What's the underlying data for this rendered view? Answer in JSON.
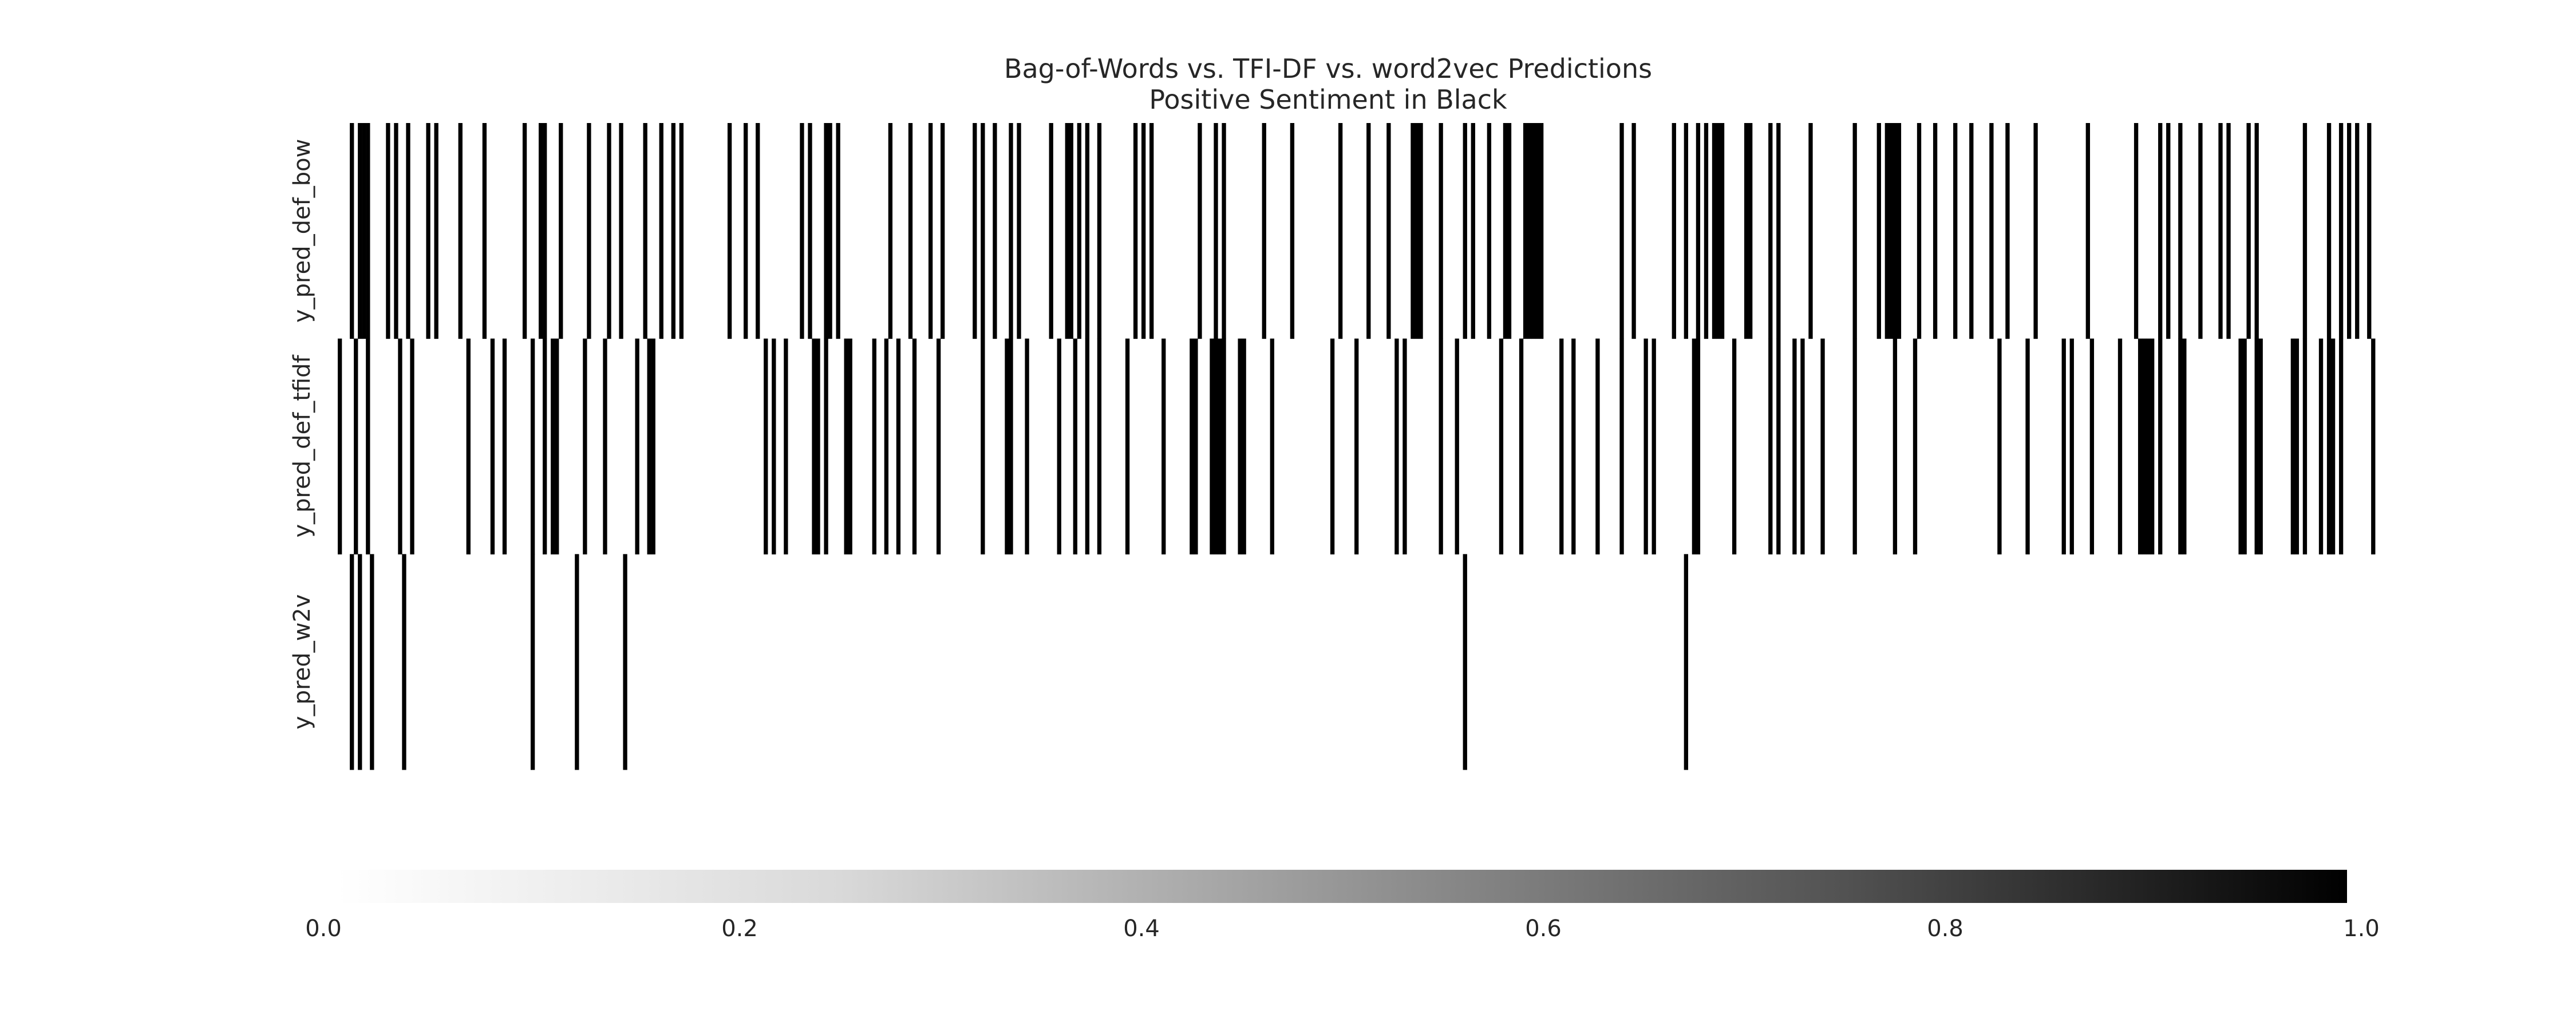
{
  "chart_data": {
    "type": "heatmap",
    "title": "Bag-of-Words vs. TFI-DF vs. word2vec Predictions",
    "subtitle": "Positive Sentiment in Black",
    "rows": [
      "y_pred_def_bow",
      "y_pred_def_tfidf",
      "y_pred_w2v"
    ],
    "n_columns": 500,
    "values": [
      [
        0,
        0,
        0,
        1,
        0,
        1,
        1,
        1,
        0,
        0,
        0,
        0,
        1,
        0,
        1,
        0,
        0,
        1,
        0,
        0,
        0,
        0,
        1,
        0,
        1,
        0,
        0,
        0,
        0,
        0,
        1,
        0,
        0,
        0,
        0,
        0,
        1,
        0,
        0,
        0,
        0,
        0,
        0,
        0,
        0,
        0,
        1,
        0,
        0,
        0,
        1,
        1,
        0,
        0,
        0,
        1,
        0,
        0,
        0,
        0,
        0,
        0,
        1,
        0,
        0,
        0,
        0,
        1,
        0,
        0,
        1,
        0,
        0,
        0,
        0,
        0,
        1,
        0,
        0,
        0,
        1,
        0,
        0,
        1,
        0,
        1,
        0,
        0,
        0,
        0,
        0,
        0,
        0,
        0,
        0,
        0,
        0,
        1,
        0,
        0,
        0,
        1,
        0,
        0,
        1,
        0,
        0,
        0,
        0,
        0,
        0,
        0,
        0,
        0,
        0,
        1,
        0,
        1,
        0,
        0,
        0,
        1,
        1,
        0,
        1,
        0,
        0,
        0,
        0,
        0,
        0,
        0,
        0,
        0,
        0,
        0,
        0,
        1,
        0,
        0,
        0,
        0,
        1,
        0,
        0,
        0,
        0,
        1,
        0,
        0,
        1,
        0,
        0,
        0,
        0,
        0,
        0,
        0,
        1,
        0,
        1,
        0,
        0,
        1,
        0,
        0,
        0,
        1,
        0,
        1,
        0,
        0,
        0,
        0,
        0,
        0,
        0,
        1,
        0,
        0,
        0,
        1,
        1,
        0,
        1,
        0,
        1,
        0,
        0,
        1,
        0,
        0,
        0,
        0,
        0,
        0,
        0,
        0,
        1,
        0,
        1,
        0,
        1,
        0,
        0,
        0,
        0,
        0,
        0,
        0,
        0,
        0,
        0,
        0,
        1,
        0,
        0,
        0,
        1,
        0,
        1,
        0,
        0,
        0,
        0,
        0,
        0,
        0,
        0,
        0,
        1,
        0,
        0,
        0,
        0,
        0,
        0,
        1,
        0,
        0,
        0,
        0,
        0,
        0,
        0,
        0,
        0,
        0,
        0,
        1,
        0,
        0,
        0,
        0,
        0,
        0,
        1,
        0,
        0,
        0,
        0,
        1,
        0,
        0,
        0,
        0,
        0,
        1,
        1,
        1,
        0,
        0,
        0,
        0,
        1,
        0,
        0,
        0,
        0,
        0,
        1,
        0,
        1,
        0,
        0,
        0,
        1,
        0,
        0,
        0,
        1,
        1,
        0,
        0,
        0,
        1,
        1,
        1,
        1,
        1,
        0,
        0,
        0,
        0,
        0,
        0,
        0,
        0,
        0,
        0,
        0,
        0,
        0,
        0,
        0,
        0,
        0,
        0,
        0,
        1,
        0,
        0,
        1,
        0,
        0,
        0,
        0,
        0,
        0,
        0,
        0,
        0,
        1,
        0,
        0,
        1,
        0,
        0,
        1,
        0,
        1,
        0,
        1,
        1,
        1,
        0,
        0,
        0,
        0,
        0,
        1,
        1,
        0,
        0,
        0,
        0,
        1,
        0,
        1,
        0,
        0,
        0,
        0,
        0,
        0,
        0,
        1,
        0,
        0,
        0,
        0,
        0,
        0,
        0,
        0,
        0,
        0,
        1,
        0,
        0,
        0,
        0,
        0,
        1,
        0,
        1,
        1,
        1,
        1,
        0,
        0,
        0,
        0,
        1,
        0,
        0,
        0,
        1,
        0,
        0,
        0,
        0,
        1,
        0,
        0,
        0,
        1,
        0,
        0,
        0,
        0,
        1,
        0,
        0,
        0,
        1,
        0,
        0,
        0,
        0,
        0,
        0,
        1,
        0,
        0,
        0,
        0,
        0,
        0,
        0,
        0,
        0,
        0,
        0,
        0,
        1,
        0,
        0,
        0,
        0,
        0,
        0,
        0,
        0,
        0,
        0,
        0,
        1,
        0,
        0,
        0,
        0,
        0,
        1,
        0,
        1,
        0,
        0,
        1,
        0,
        0,
        0,
        0,
        1,
        0,
        0,
        0,
        0,
        1,
        0,
        1,
        0,
        0,
        0,
        0,
        1,
        0,
        1,
        0,
        0,
        0,
        0,
        0,
        0,
        0,
        0,
        0,
        0,
        0,
        1,
        0,
        0,
        0,
        0,
        0,
        1,
        0,
        0,
        1,
        0,
        1,
        0,
        1,
        0,
        0,
        1,
        0,
        0,
        0
      ],
      [
        1,
        0,
        0,
        0,
        1,
        0,
        0,
        1,
        0,
        0,
        0,
        0,
        0,
        0,
        0,
        1,
        0,
        0,
        1,
        0,
        0,
        0,
        0,
        0,
        0,
        0,
        0,
        0,
        0,
        0,
        0,
        0,
        1,
        0,
        0,
        0,
        0,
        0,
        1,
        0,
        0,
        1,
        0,
        0,
        0,
        0,
        0,
        0,
        1,
        0,
        0,
        1,
        0,
        1,
        1,
        0,
        0,
        0,
        0,
        0,
        0,
        1,
        0,
        0,
        0,
        0,
        1,
        0,
        0,
        0,
        0,
        0,
        0,
        0,
        1,
        0,
        0,
        1,
        1,
        0,
        0,
        0,
        0,
        0,
        0,
        0,
        0,
        0,
        0,
        0,
        0,
        0,
        0,
        0,
        0,
        0,
        0,
        0,
        0,
        0,
        0,
        0,
        0,
        0,
        0,
        0,
        1,
        0,
        1,
        0,
        0,
        1,
        0,
        0,
        0,
        0,
        0,
        0,
        1,
        1,
        0,
        1,
        0,
        0,
        0,
        0,
        1,
        1,
        0,
        0,
        0,
        0,
        0,
        1,
        0,
        0,
        1,
        0,
        0,
        1,
        0,
        0,
        0,
        1,
        0,
        0,
        0,
        0,
        0,
        1,
        0,
        0,
        0,
        0,
        0,
        0,
        0,
        0,
        0,
        0,
        1,
        0,
        0,
        0,
        0,
        0,
        1,
        1,
        0,
        0,
        0,
        1,
        0,
        0,
        0,
        0,
        0,
        0,
        0,
        1,
        0,
        0,
        0,
        1,
        0,
        0,
        1,
        0,
        0,
        1,
        0,
        0,
        0,
        0,
        0,
        0,
        1,
        0,
        0,
        0,
        0,
        0,
        0,
        0,
        0,
        1,
        0,
        0,
        0,
        0,
        0,
        0,
        1,
        1,
        0,
        0,
        0,
        1,
        1,
        1,
        1,
        0,
        0,
        0,
        1,
        1,
        0,
        0,
        0,
        0,
        0,
        0,
        1,
        0,
        0,
        0,
        0,
        0,
        0,
        0,
        0,
        0,
        0,
        0,
        0,
        0,
        0,
        1,
        0,
        0,
        0,
        0,
        0,
        1,
        0,
        0,
        0,
        0,
        0,
        0,
        0,
        0,
        0,
        1,
        0,
        1,
        0,
        0,
        0,
        0,
        0,
        0,
        0,
        0,
        1,
        0,
        0,
        0,
        1,
        0,
        0,
        0,
        0,
        0,
        0,
        0,
        0,
        0,
        0,
        1,
        0,
        0,
        0,
        0,
        1,
        0,
        0,
        0,
        0,
        0,
        0,
        0,
        0,
        0,
        1,
        0,
        0,
        1,
        0,
        0,
        0,
        0,
        0,
        1,
        0,
        0,
        0,
        0,
        0,
        1,
        0,
        0,
        0,
        0,
        0,
        1,
        0,
        1,
        0,
        0,
        0,
        0,
        0,
        0,
        0,
        0,
        0,
        1,
        1,
        0,
        0,
        0,
        0,
        0,
        0,
        0,
        0,
        1,
        0,
        0,
        0,
        0,
        0,
        0,
        0,
        0,
        1,
        0,
        1,
        0,
        0,
        0,
        1,
        0,
        1,
        0,
        0,
        0,
        0,
        1,
        0,
        0,
        0,
        0,
        0,
        0,
        0,
        1,
        0,
        0,
        0,
        0,
        0,
        0,
        0,
        0,
        0,
        1,
        0,
        0,
        0,
        0,
        1,
        0,
        0,
        0,
        0,
        0,
        0,
        0,
        0,
        0,
        0,
        0,
        0,
        0,
        0,
        0,
        0,
        0,
        0,
        0,
        0,
        1,
        0,
        0,
        0,
        0,
        0,
        0,
        1,
        0,
        0,
        0,
        0,
        0,
        0,
        0,
        0,
        1,
        0,
        1,
        0,
        0,
        0,
        0,
        1,
        0,
        0,
        0,
        0,
        0,
        0,
        1,
        0,
        0,
        0,
        0,
        1,
        1,
        1,
        1,
        0,
        1,
        0,
        0,
        0,
        0,
        1,
        1,
        0,
        0,
        0,
        0,
        0,
        0,
        0,
        0,
        0,
        0,
        0,
        0,
        0,
        1,
        1,
        0,
        0,
        1,
        1,
        0,
        0,
        0,
        0,
        0,
        0,
        0,
        1,
        1,
        0,
        1,
        0,
        0,
        0,
        1,
        0,
        1,
        1,
        0,
        1,
        0,
        0,
        0,
        0,
        0,
        0,
        0,
        1
      ],
      [
        0,
        0,
        0,
        1,
        0,
        1,
        0,
        0,
        1,
        0,
        0,
        0,
        0,
        0,
        0,
        0,
        1,
        0,
        0,
        0,
        0,
        0,
        0,
        0,
        0,
        0,
        0,
        0,
        0,
        0,
        0,
        0,
        0,
        0,
        0,
        0,
        0,
        0,
        0,
        0,
        0,
        0,
        0,
        0,
        0,
        0,
        0,
        0,
        1,
        0,
        0,
        0,
        0,
        0,
        0,
        0,
        0,
        0,
        0,
        1,
        0,
        0,
        0,
        0,
        0,
        0,
        0,
        0,
        0,
        0,
        0,
        1,
        0,
        0,
        0,
        0,
        0,
        0,
        0,
        0,
        0,
        0,
        0,
        0,
        0,
        0,
        0,
        0,
        0,
        0,
        0,
        0,
        0,
        0,
        0,
        0,
        0,
        0,
        0,
        0,
        0,
        0,
        0,
        0,
        0,
        0,
        0,
        0,
        0,
        0,
        0,
        0,
        0,
        0,
        0,
        0,
        0,
        0,
        0,
        0,
        0,
        0,
        0,
        0,
        0,
        0,
        0,
        0,
        0,
        0,
        0,
        0,
        0,
        0,
        0,
        0,
        0,
        0,
        0,
        0,
        0,
        0,
        0,
        0,
        0,
        0,
        0,
        0,
        0,
        0,
        0,
        0,
        0,
        0,
        0,
        0,
        0,
        0,
        0,
        0,
        0,
        0,
        0,
        0,
        0,
        0,
        0,
        0,
        0,
        0,
        0,
        0,
        0,
        0,
        0,
        0,
        0,
        0,
        0,
        0,
        0,
        0,
        0,
        0,
        0,
        0,
        0,
        0,
        0,
        0,
        0,
        0,
        0,
        0,
        0,
        0,
        0,
        0,
        0,
        0,
        0,
        0,
        0,
        0,
        0,
        0,
        0,
        0,
        0,
        0,
        0,
        0,
        0,
        0,
        0,
        0,
        0,
        0,
        0,
        0,
        0,
        0,
        0,
        0,
        0,
        0,
        0,
        0,
        0,
        0,
        0,
        0,
        0,
        0,
        0,
        0,
        0,
        0,
        0,
        0,
        0,
        0,
        0,
        0,
        0,
        0,
        0,
        0,
        0,
        0,
        0,
        0,
        0,
        0,
        0,
        0,
        0,
        0,
        0,
        0,
        0,
        0,
        0,
        0,
        0,
        0,
        0,
        0,
        0,
        0,
        0,
        0,
        0,
        0,
        0,
        0,
        0,
        0,
        0,
        0,
        1,
        0,
        0,
        0,
        0,
        0,
        0,
        0,
        0,
        0,
        0,
        0,
        0,
        0,
        0,
        0,
        0,
        0,
        0,
        0,
        0,
        0,
        0,
        0,
        0,
        0,
        0,
        0,
        0,
        0,
        0,
        0,
        0,
        0,
        0,
        0,
        0,
        0,
        0,
        0,
        0,
        0,
        0,
        0,
        0,
        0,
        0,
        0,
        0,
        0,
        0,
        0,
        0,
        0,
        0,
        1,
        0,
        0,
        0,
        0,
        0,
        0,
        0,
        0,
        0,
        0,
        0,
        0,
        0,
        0,
        0,
        0,
        0,
        0,
        0,
        0,
        0,
        0,
        0,
        0,
        0,
        0,
        0,
        0,
        0,
        0,
        0,
        0,
        0,
        0,
        0,
        0,
        0,
        0,
        0,
        0,
        0,
        0,
        0,
        0,
        0,
        0,
        0,
        0,
        0,
        0,
        0,
        0,
        0,
        0,
        0,
        0,
        0,
        0,
        0,
        0,
        0,
        0,
        0,
        0,
        0,
        0,
        0,
        0,
        0,
        0,
        0,
        0,
        0,
        0,
        0,
        0,
        0,
        0,
        0,
        0,
        0,
        0,
        0,
        0,
        0,
        0,
        0,
        0,
        0,
        0,
        0,
        0,
        0,
        0,
        0,
        0,
        0,
        0,
        0,
        0,
        0,
        0,
        0,
        0,
        0,
        0,
        0,
        0,
        0,
        0,
        0,
        0,
        0,
        0,
        0,
        0,
        0,
        0,
        0,
        0,
        0,
        0,
        0,
        0,
        0,
        0,
        0,
        0,
        0,
        0,
        0,
        0,
        0,
        0,
        0,
        0,
        0,
        0,
        0,
        0,
        0,
        0,
        0,
        0,
        0,
        0,
        0,
        0,
        0,
        0,
        0,
        0,
        0,
        0,
        0,
        0,
        0,
        0,
        0,
        0,
        0,
        0,
        0,
        0,
        0,
        0,
        0,
        0,
        0,
        0,
        0,
        0,
        0,
        0,
        0,
        0,
        0,
        0,
        0,
        0,
        0,
        0,
        0,
        0,
        0,
        0,
        0,
        0,
        0,
        0,
        0,
        0,
        0,
        0,
        0
      ]
    ],
    "colorbar": {
      "colormap": "Greys",
      "vmin": 0.0,
      "vmax": 1.0,
      "ticks": [
        0.0,
        0.2,
        0.4,
        0.6,
        0.8,
        1.0
      ],
      "tick_labels": [
        "0.0",
        "0.2",
        "0.4",
        "0.6",
        "0.8",
        "1.0"
      ],
      "orientation": "horizontal",
      "position": "bottom"
    },
    "colors": {
      "positive": "#000000",
      "negative": "#ffffff",
      "text": "#262626"
    },
    "grid": false
  }
}
